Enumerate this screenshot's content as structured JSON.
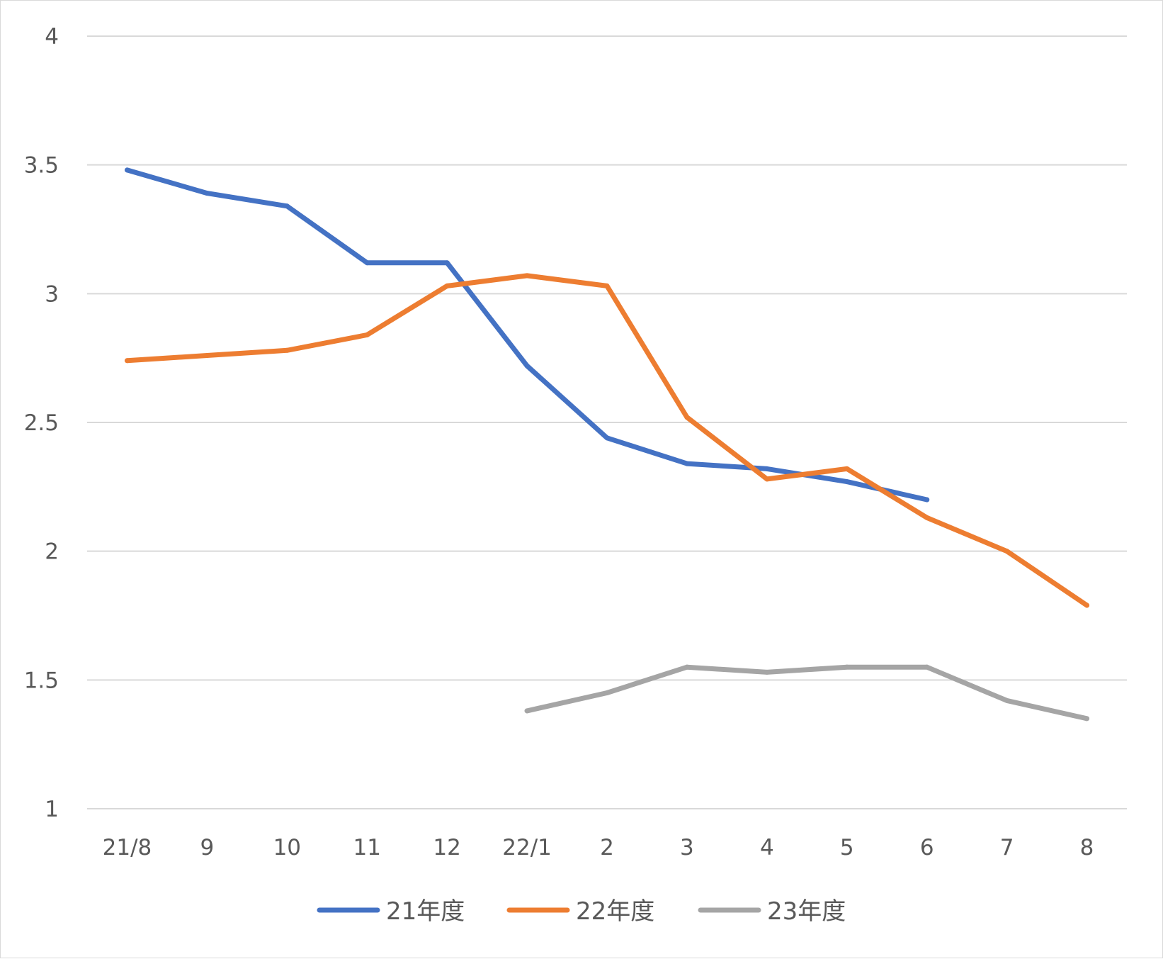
{
  "chart_data": {
    "type": "line",
    "categories": [
      "21/8",
      "9",
      "10",
      "11",
      "12",
      "22/1",
      "2",
      "3",
      "4",
      "5",
      "6",
      "7",
      "8"
    ],
    "y_ticks": [
      "1",
      "1.5",
      "2",
      "2.5",
      "3",
      "3.5",
      "4"
    ],
    "ylim": [
      1,
      4
    ],
    "grid": true,
    "legend_position": "bottom",
    "series": [
      {
        "name": "21年度",
        "color": "#4472C4",
        "values": [
          3.48,
          3.39,
          3.34,
          3.12,
          3.12,
          2.72,
          2.44,
          2.34,
          2.32,
          2.27,
          2.2,
          null,
          null
        ]
      },
      {
        "name": "22年度",
        "color": "#ED7D31",
        "values": [
          2.74,
          2.76,
          2.78,
          2.84,
          3.03,
          3.07,
          3.03,
          2.52,
          2.28,
          2.32,
          2.13,
          2.0,
          1.79
        ]
      },
      {
        "name": "23年度",
        "color": "#A5A5A5",
        "values": [
          null,
          null,
          null,
          null,
          null,
          1.38,
          1.45,
          1.55,
          1.53,
          1.55,
          1.55,
          1.42,
          1.35
        ]
      }
    ]
  }
}
